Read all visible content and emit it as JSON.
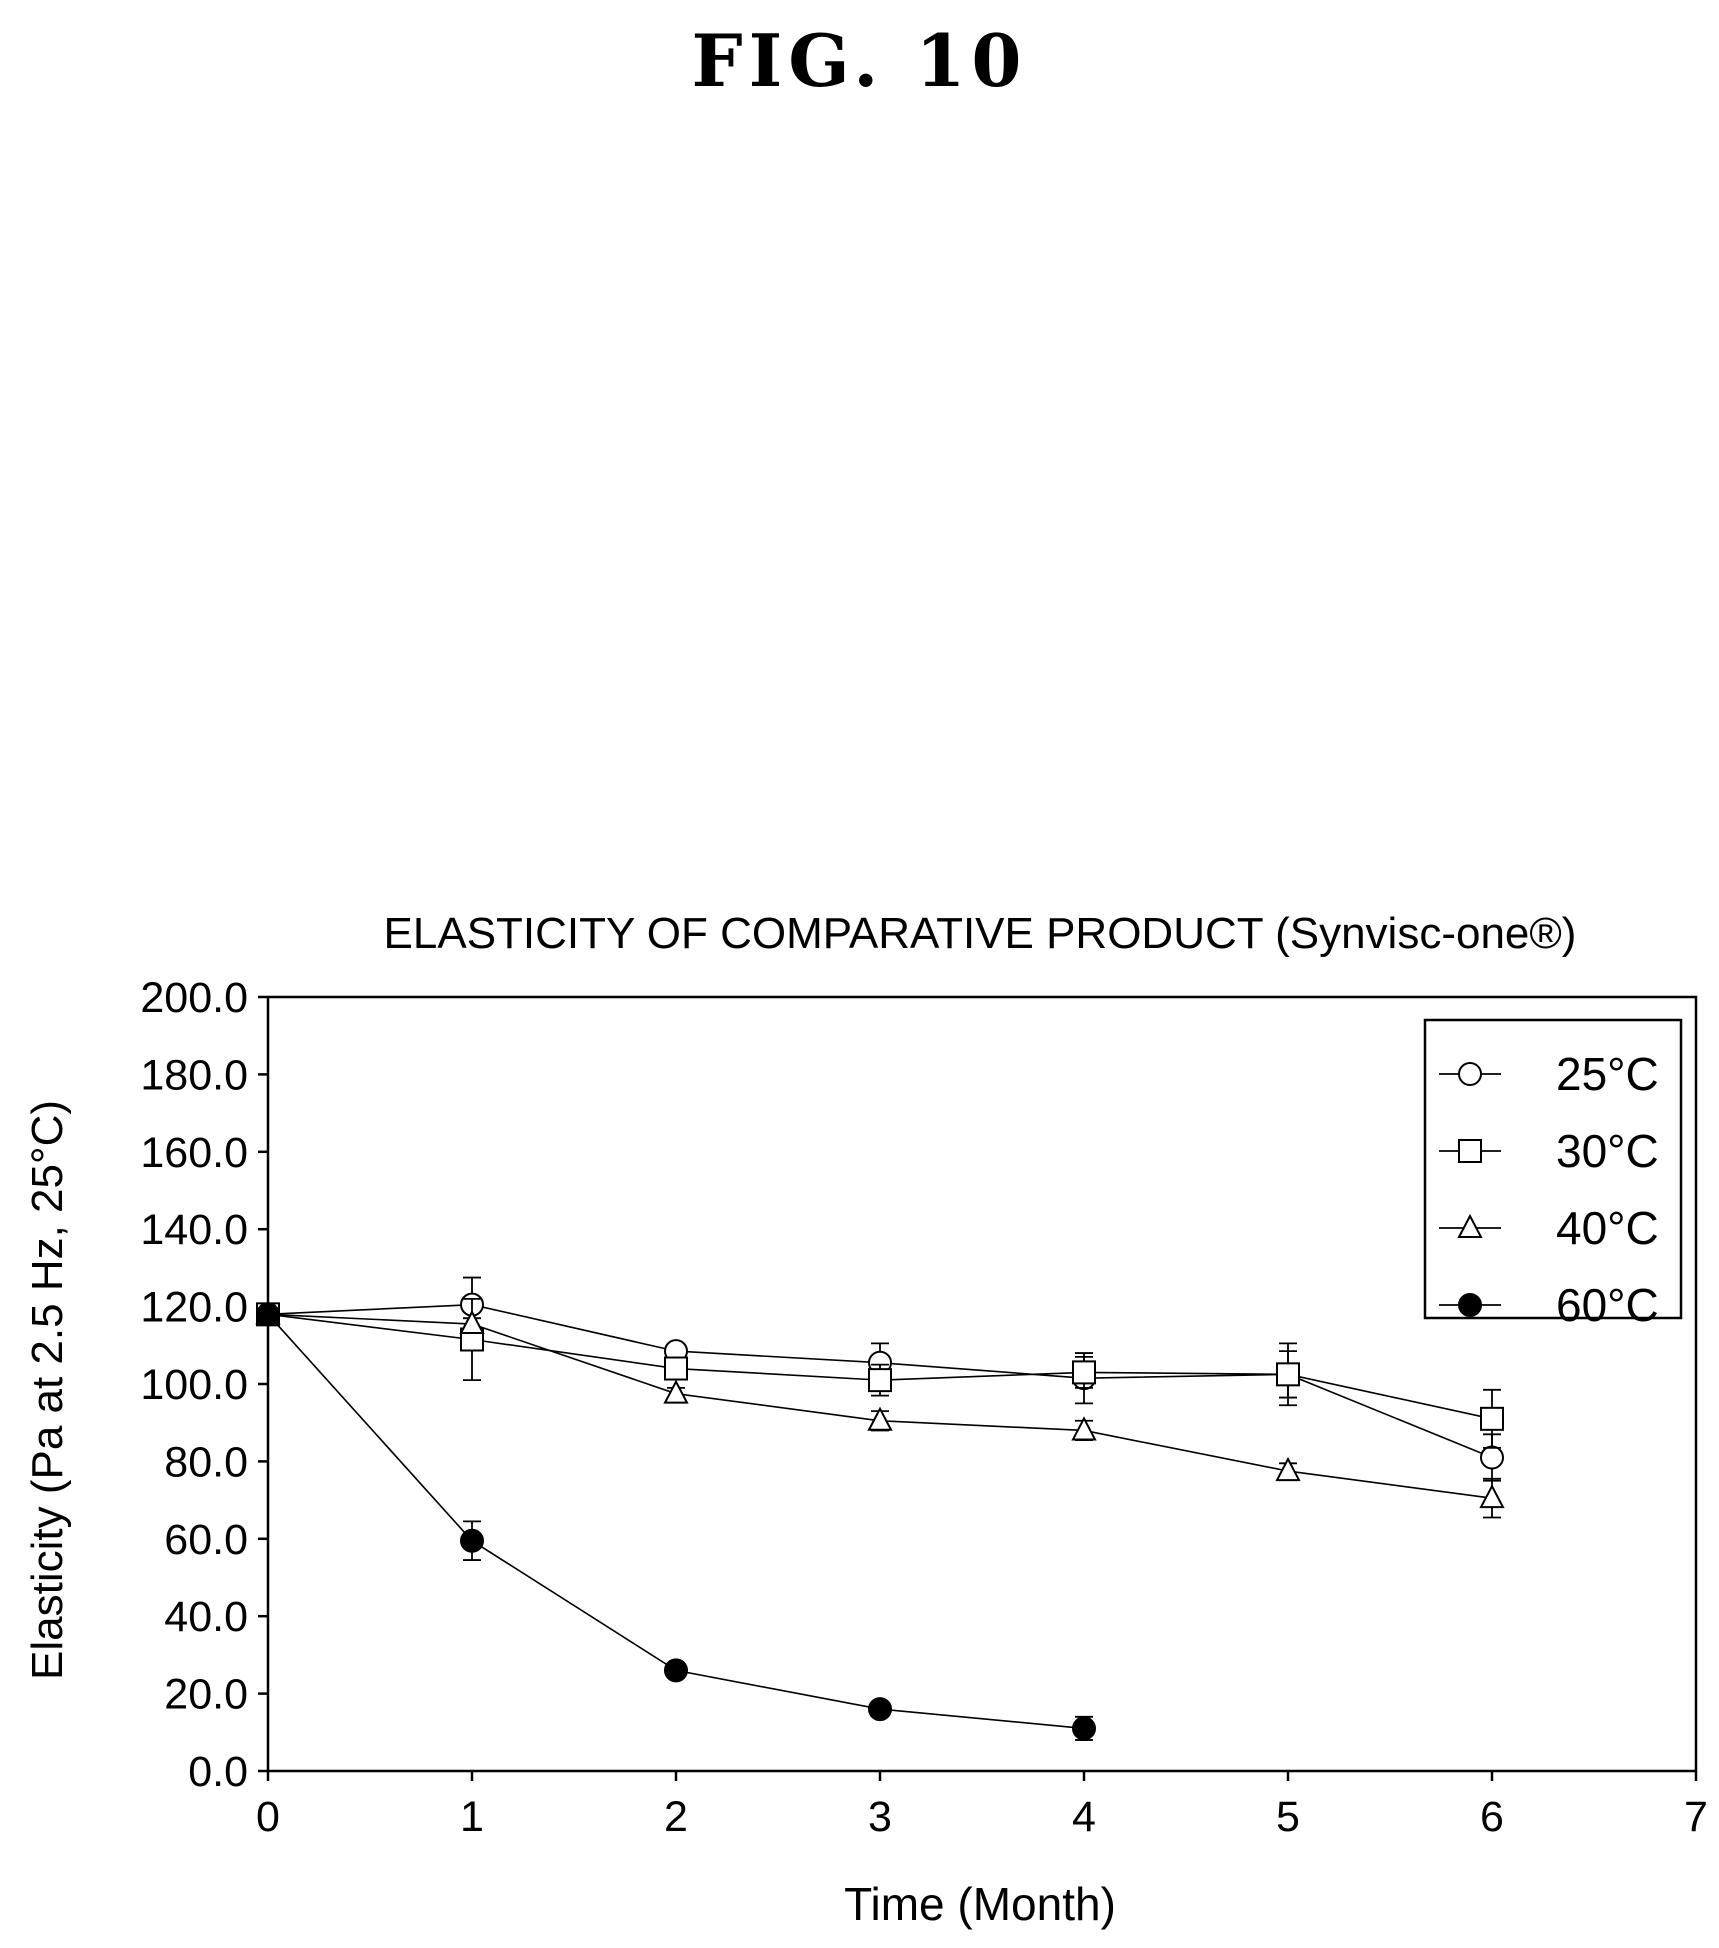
{
  "figure_label": "FIG. 10",
  "chart_data": {
    "type": "line",
    "title": "ELASTICITY OF COMPARATIVE PRODUCT (Synvisc-one®)",
    "xlabel": "Time (Month)",
    "ylabel": "Elasticity (Pa at 2.5 Hz, 25°C)",
    "xlim": [
      0,
      7
    ],
    "ylim": [
      0,
      200
    ],
    "x_ticks": [
      "0",
      "1",
      "2",
      "3",
      "4",
      "5",
      "6",
      "7"
    ],
    "y_ticks": [
      "0.0",
      "20.0",
      "40.0",
      "60.0",
      "80.0",
      "100.0",
      "120.0",
      "140.0",
      "160.0",
      "180.0",
      "200.0"
    ],
    "grid": false,
    "legend_position": "top-right",
    "series": [
      {
        "name": "25°C",
        "marker": "open-circle",
        "x": [
          0,
          1,
          2,
          3,
          4,
          5,
          6
        ],
        "y": [
          118.0,
          120.5,
          108.5,
          105.5,
          101.5,
          102.5,
          81.0
        ],
        "error": [
          1.5,
          7.0,
          1.5,
          5.0,
          6.5,
          6.0,
          6.0
        ]
      },
      {
        "name": "30°C",
        "marker": "open-square",
        "x": [
          0,
          1,
          2,
          3,
          4,
          5,
          6
        ],
        "y": [
          118.0,
          111.5,
          104.0,
          101.0,
          103.0,
          102.5,
          91.0
        ],
        "error": [
          1.5,
          10.5,
          1.5,
          4.0,
          4.0,
          8.0,
          7.5
        ]
      },
      {
        "name": "40°C",
        "marker": "open-triangle",
        "x": [
          0,
          1,
          2,
          3,
          4,
          5,
          6
        ],
        "y": [
          118.0,
          115.5,
          97.5,
          90.5,
          88.0,
          77.5,
          70.5
        ],
        "error": [
          1.5,
          1.5,
          1.5,
          2.5,
          2.5,
          2.0,
          5.0
        ]
      },
      {
        "name": "60°C",
        "marker": "filled-circle",
        "x": [
          0,
          1,
          2,
          3,
          4
        ],
        "y": [
          118.0,
          59.5,
          26.0,
          16.0,
          11.0
        ],
        "error": [
          1.5,
          5.0,
          1.5,
          1.5,
          3.0
        ]
      }
    ]
  }
}
